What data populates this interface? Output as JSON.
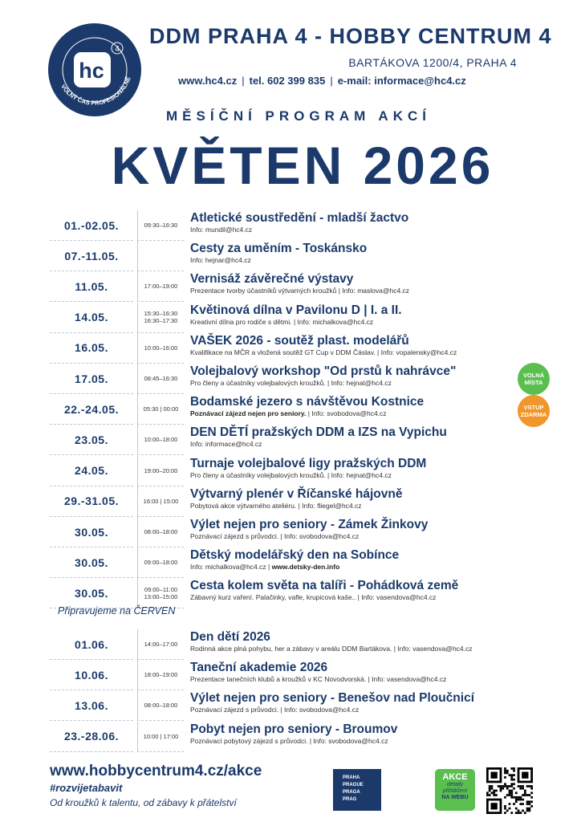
{
  "header": {
    "logo_letters": "hc",
    "logo_number": "4",
    "logo_ring": "VOLNÝ ČAS PROFESIONÁLNĚ",
    "org": "DDM PRAHA 4 - HOBBY CENTRUM 4",
    "address": "BARTÁKOVA 1200/4, PRAHA 4",
    "web": "www.hc4.cz",
    "phone": "tel. 602 399 835",
    "email": "e-mail: informace@hc4.cz"
  },
  "subtitle": "MĚSÍČNÍ PROGRAM AKCÍ",
  "title": "KVĚTEN 2026",
  "badges": [
    {
      "text": "VOLNÁ MÍSTA",
      "color": "#5bbf4f"
    },
    {
      "text": "VSTUP ZDARMA",
      "color": "#f0962b"
    }
  ],
  "events": [
    {
      "date": "01.-02.05.",
      "time": [
        "09:30–16:30"
      ],
      "title": "Atletické soustředění - mladší žactvo",
      "info": "Info: mundil@hc4.cz"
    },
    {
      "date": "07.-11.05.",
      "time": [],
      "title": "Cesty za uměním - Toskánsko",
      "info": "Info: hejnar@hc4.cz"
    },
    {
      "date": "11.05.",
      "time": [
        "17:00–19:00"
      ],
      "title": "Vernisáž závěrečné výstavy",
      "info": "Prezentace tvorby účastníků výtvarných kroužků | Info: maslova@hc4.cz"
    },
    {
      "date": "14.05.",
      "time": [
        "15:30–16:30",
        "16:30–17:30"
      ],
      "title": "Květinová dílna v Pavilonu D | I. a II.",
      "info": "Kreativní dílna pro rodiče s dětmi. | Info: michalkova@hc4.cz"
    },
    {
      "date": "16.05.",
      "time": [
        "10:00–16:00"
      ],
      "title": "VAŠEK 2026 - soutěž plast. modelářů",
      "info": "Kvalifikace na MČR a vložená soutěž GT Cup v DDM Čáslav. | Info: vopalensky@hc4.cz"
    },
    {
      "date": "17.05.",
      "time": [
        "08:45–16:30"
      ],
      "title": "Volejbalový workshop \"Od prstů k nahrávce\"",
      "info": "Pro členy a účastníky volejbalových kroužků. | Info: hejnat@hc4.cz"
    },
    {
      "date": "22.-24.05.",
      "time": [
        "05:30 | 00:00"
      ],
      "title": "Bodamské jezero s návštěvou Kostnice",
      "note": "Poznávací zájezd nejen pro seniory.",
      "info": "| Info: svobodova@hc4.cz"
    },
    {
      "date": "23.05.",
      "time": [
        "10:00–18:00"
      ],
      "title": "DEN DĚTÍ pražských DDM a IZS na Vypichu",
      "info": "Info: informace@hc4.cz"
    },
    {
      "date": "24.05.",
      "time": [
        "19:00–20:00"
      ],
      "title": "Turnaje volejbalové ligy pražských DDM",
      "info": "Pro členy a účastníky volejbalových kroužků. | Info: hejnat@hc4.cz"
    },
    {
      "date": "29.-31.05.",
      "time": [
        "16:00 | 15:00"
      ],
      "title": "Výtvarný plenér v Říčanské hájovně",
      "info": "Pobytová akce výtvarného ateliéru. | Info: fliegel@hc4.cz"
    },
    {
      "date": "30.05.",
      "time": [
        "08:00–18:00"
      ],
      "title": "Výlet nejen pro seniory - Zámek Žinkovy",
      "info": "Poznávací zájezd s průvodci. | Info: svobodova@hc4.cz"
    },
    {
      "date": "30.05.",
      "time": [
        "09:00–18:00"
      ],
      "title": "Dětský modelářský den na Sobínce",
      "info": "Info: michalkova@hc4.cz |",
      "link": "www.detsky-den.info"
    },
    {
      "date": "30.05.",
      "time": [
        "09:00–11:00",
        "13:00–15:00"
      ],
      "title": "Cesta kolem světa na talíři - Pohádková země",
      "info": "Zábavný kurz vaření. Palačinky, vafle, krupicová kaše.. | Info: vasendova@hc4.cz"
    }
  ],
  "next_label": "Připravujeme na ČERVEN",
  "next_events": [
    {
      "date": "01.06.",
      "time": [
        "14:00–17:00"
      ],
      "title": "Den dětí 2026",
      "info": "Rodinná akce plná pohybu, her a zábavy v areálu DDM Bartákova. | Info: vasendova@hc4.cz"
    },
    {
      "date": "10.06.",
      "time": [
        "18:00–19:00"
      ],
      "title": "Taneční akademie 2026",
      "info": "Prezentace tanečních klubů a kroužků v KC Novodvorská. | Info: vasendova@hc4.cz"
    },
    {
      "date": "13.06.",
      "time": [
        "08:00–18:00"
      ],
      "title": "Výlet nejen pro seniory - Benešov nad Ploučnicí",
      "info": "Poznávací zájezd s průvodci. | Info: svobodova@hc4.cz"
    },
    {
      "date": "23.-28.06.",
      "time": [
        "10:00 | 17:00"
      ],
      "title": "Pobyt nejen pro seniory - Broumov",
      "info": "Poznávací pobytový zájezd s průvodci. | Info: svobodova@hc4.cz"
    }
  ],
  "footer": {
    "url": "www.hobbycentrum4.cz/akce",
    "hashtag": "#rozvijetabavit",
    "slogan": "Od kroužků k talentu, od zábavy k přátelství",
    "praha": [
      "PRAHA",
      "PRAGUE",
      "PRAGA",
      "PRAG"
    ],
    "akce": "AKCE",
    "akce_sub": "detaily přihlášení",
    "akce_web": "NA WEBU"
  }
}
